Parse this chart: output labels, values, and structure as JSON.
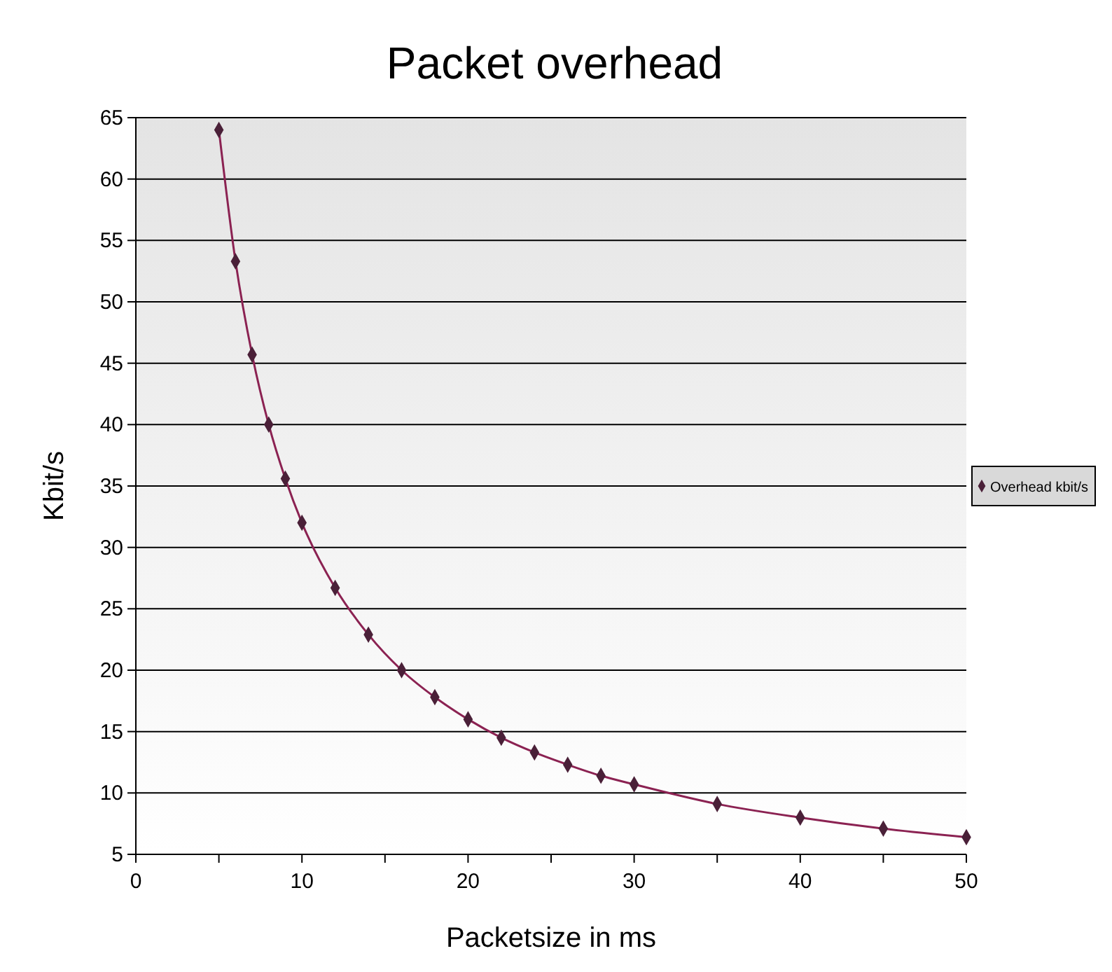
{
  "chart_data": {
    "type": "line",
    "title": "Packet overhead",
    "xlabel": "Packetsize in ms",
    "ylabel": "Kbit/s",
    "x": [
      5,
      6,
      7,
      8,
      9,
      10,
      12,
      14,
      16,
      18,
      20,
      22,
      24,
      26,
      28,
      30,
      35,
      40,
      45,
      50
    ],
    "series": [
      {
        "name": "Overhead kbit/s",
        "color": "#8b2252",
        "values": [
          64,
          53.3,
          45.7,
          40,
          35.6,
          32,
          26.7,
          22.9,
          20,
          17.8,
          16,
          14.5,
          13.3,
          12.3,
          11.4,
          10.7,
          9.1,
          8,
          7.1,
          6.4
        ]
      }
    ],
    "xlim": [
      0,
      50
    ],
    "xticks": [
      0,
      {
        "value": 5,
        "label": null
      },
      10,
      {
        "value": 15,
        "label": null
      },
      20,
      {
        "value": 25,
        "label": null
      },
      30,
      {
        "value": 35,
        "label": null
      },
      40,
      {
        "value": 45,
        "label": null
      },
      50
    ],
    "ylim": [
      5,
      65
    ],
    "yticks": [
      5,
      10,
      15,
      20,
      25,
      30,
      35,
      40,
      45,
      50,
      55,
      60,
      65
    ],
    "grid": "y",
    "legend": "right",
    "marker": "diamond",
    "line_style": "solid"
  }
}
